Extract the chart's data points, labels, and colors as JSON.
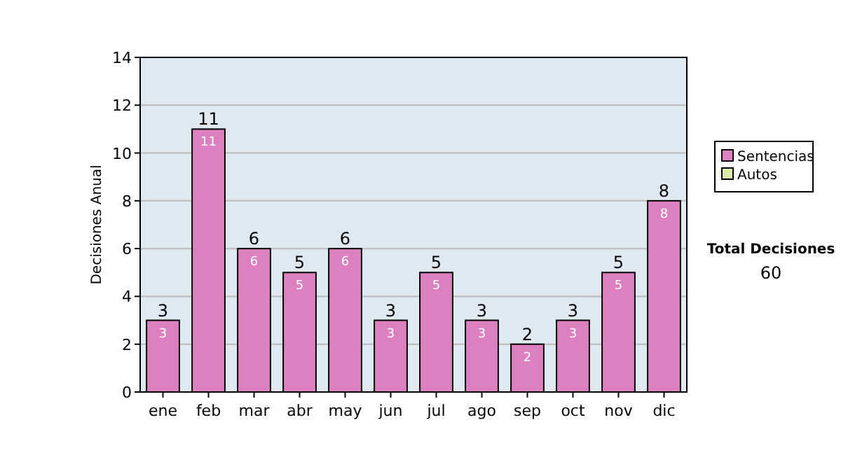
{
  "chart_data": {
    "type": "bar",
    "ylabel": "Decisiones Anual",
    "categories": [
      "ene",
      "feb",
      "mar",
      "abr",
      "may",
      "jun",
      "jul",
      "ago",
      "sep",
      "oct",
      "nov",
      "dic"
    ],
    "stacked": true,
    "series": [
      {
        "name": "Sentencias",
        "color": "#dd80c0",
        "values": [
          3,
          11,
          6,
          5,
          6,
          3,
          5,
          3,
          2,
          3,
          5,
          8
        ],
        "value_labels": [
          "3",
          "11",
          "6",
          "5",
          "6",
          "3",
          "5",
          "3",
          "2",
          "3",
          "5",
          "8"
        ]
      },
      {
        "name": "Autos",
        "color": "#ddeeaa",
        "values": [
          0,
          0,
          0,
          0,
          0,
          0,
          0,
          0,
          0,
          0,
          0,
          0
        ]
      }
    ],
    "totals": [
      "3",
      "11",
      "6",
      "5",
      "6",
      "3",
      "5",
      "3",
      "2",
      "3",
      "5",
      "8"
    ],
    "ylim": [
      0,
      14
    ],
    "yticks": [
      0,
      2,
      4,
      6,
      8,
      10,
      12,
      14
    ],
    "grid": "y",
    "legend": "right",
    "annotations": [
      "Total Decisiones",
      "60"
    ]
  }
}
